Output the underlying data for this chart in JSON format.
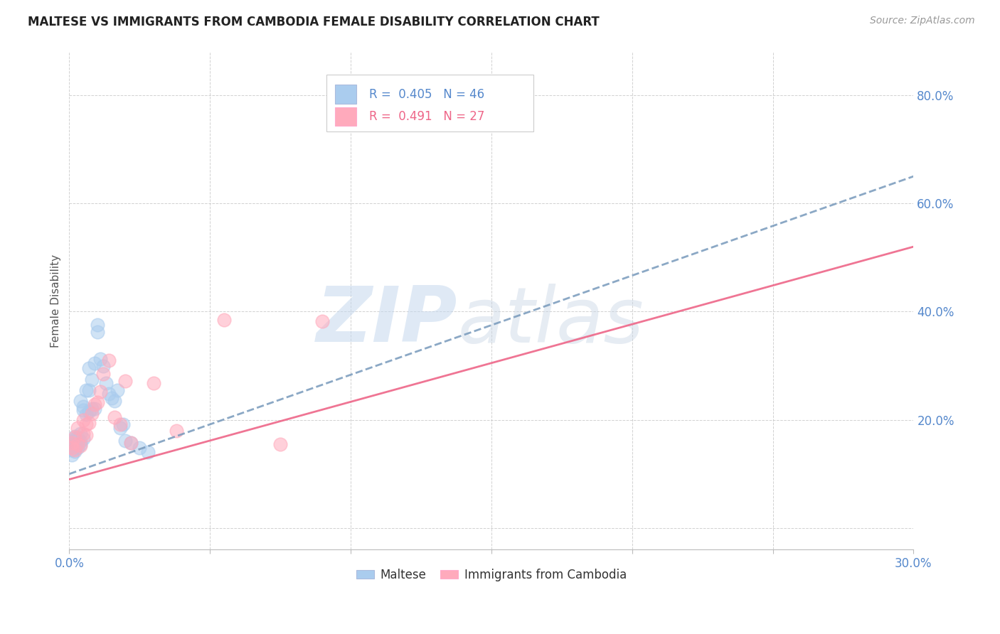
{
  "title": "MALTESE VS IMMIGRANTS FROM CAMBODIA FEMALE DISABILITY CORRELATION CHART",
  "source": "Source: ZipAtlas.com",
  "ylabel": "Female Disability",
  "xlim": [
    0.0,
    0.3
  ],
  "ylim": [
    -0.04,
    0.88
  ],
  "yticks": [
    0.0,
    0.2,
    0.4,
    0.6,
    0.8
  ],
  "ytick_labels": [
    "",
    "20.0%",
    "40.0%",
    "60.0%",
    "80.0%"
  ],
  "xticks": [
    0.0,
    0.05,
    0.1,
    0.15,
    0.2,
    0.25,
    0.3
  ],
  "blue_R": 0.405,
  "blue_N": 46,
  "pink_R": 0.491,
  "pink_N": 27,
  "maltese_color": "#aaccee",
  "cambodia_color": "#ffaabc",
  "trendline_blue_color": "#7799bb",
  "trendline_pink_color": "#ee6688",
  "background_color": "#ffffff",
  "maltese_x": [
    0.001,
    0.001,
    0.001,
    0.001,
    0.001,
    0.002,
    0.002,
    0.002,
    0.002,
    0.002,
    0.002,
    0.003,
    0.003,
    0.003,
    0.003,
    0.004,
    0.004,
    0.004,
    0.004,
    0.005,
    0.005,
    0.005,
    0.006,
    0.006,
    0.007,
    0.007,
    0.007,
    0.008,
    0.008,
    0.009,
    0.009,
    0.01,
    0.01,
    0.011,
    0.012,
    0.013,
    0.014,
    0.015,
    0.016,
    0.017,
    0.018,
    0.019,
    0.02,
    0.022,
    0.025,
    0.028
  ],
  "maltese_y": [
    0.145,
    0.15,
    0.155,
    0.16,
    0.135,
    0.148,
    0.152,
    0.158,
    0.165,
    0.142,
    0.17,
    0.155,
    0.162,
    0.148,
    0.168,
    0.235,
    0.16,
    0.175,
    0.155,
    0.218,
    0.225,
    0.165,
    0.255,
    0.21,
    0.255,
    0.215,
    0.295,
    0.275,
    0.22,
    0.305,
    0.22,
    0.375,
    0.362,
    0.312,
    0.3,
    0.268,
    0.248,
    0.24,
    0.235,
    0.255,
    0.185,
    0.192,
    0.162,
    0.158,
    0.148,
    0.14
  ],
  "cambodia_x": [
    0.001,
    0.001,
    0.002,
    0.002,
    0.003,
    0.003,
    0.004,
    0.005,
    0.005,
    0.006,
    0.006,
    0.007,
    0.008,
    0.009,
    0.01,
    0.011,
    0.012,
    0.014,
    0.016,
    0.018,
    0.02,
    0.022,
    0.03,
    0.038,
    0.055,
    0.075,
    0.09
  ],
  "cambodia_y": [
    0.148,
    0.158,
    0.145,
    0.168,
    0.155,
    0.185,
    0.152,
    0.175,
    0.2,
    0.192,
    0.172,
    0.195,
    0.212,
    0.228,
    0.232,
    0.252,
    0.285,
    0.31,
    0.205,
    0.192,
    0.272,
    0.158,
    0.268,
    0.18,
    0.385,
    0.155,
    0.382
  ],
  "trendline_x_start": 0.0,
  "trendline_x_end": 0.3,
  "blue_trend_y0": 0.1,
  "blue_trend_y1": 0.65,
  "pink_trend_y0": 0.09,
  "pink_trend_y1": 0.52
}
